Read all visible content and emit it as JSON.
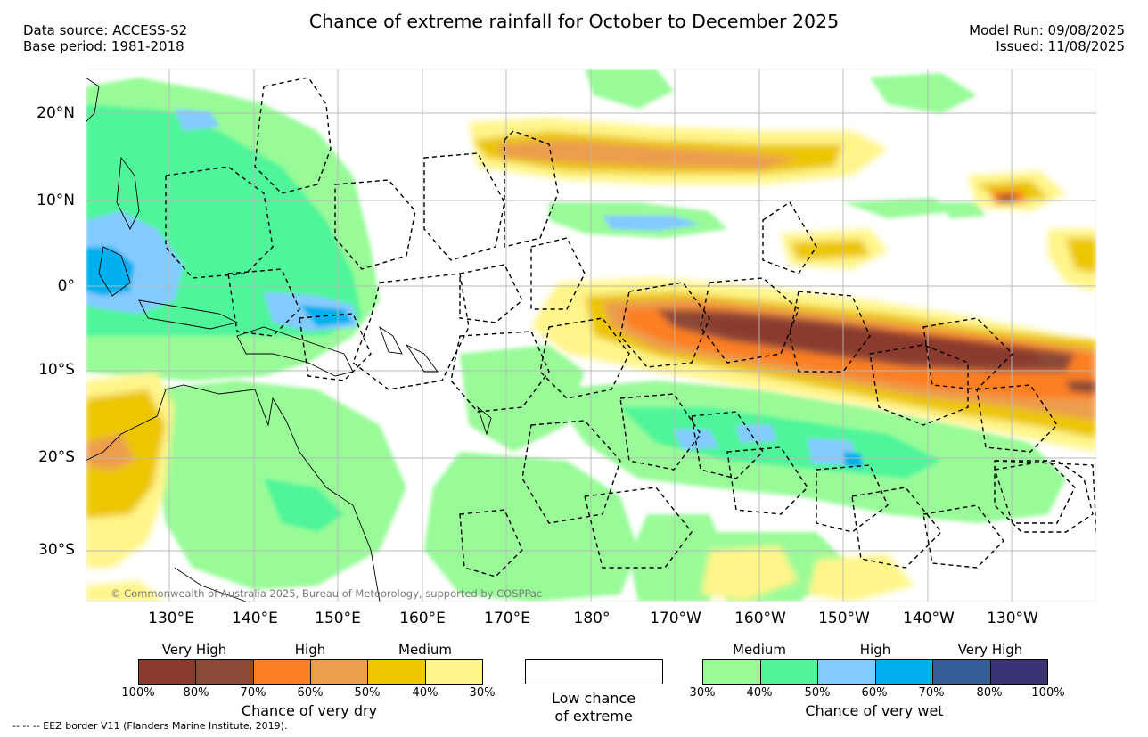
{
  "title": "Chance of extreme rainfall for October to December 2025",
  "meta": {
    "data_source": "Data source: ACCESS-S2",
    "base_period": "Base period: 1981-2018",
    "model_run": "Model Run: 09/08/2025",
    "issued": "Issued: 11/08/2025"
  },
  "axes": {
    "lat_labels": [
      "20°N",
      "10°N",
      "0°",
      "10°S",
      "20°S",
      "30°S"
    ],
    "lon_labels": [
      "130°E",
      "140°E",
      "150°E",
      "160°E",
      "170°E",
      "180°",
      "170°W",
      "160°W",
      "150°W",
      "140°W",
      "130°W"
    ]
  },
  "copyright": "© Commonwealth of Australia 2025, Bureau of Meteorology, supported by COSPPac",
  "legend": {
    "dry": {
      "title": "Chance of very dry",
      "levels": [
        "Very High",
        "High",
        "Medium"
      ],
      "ticks": [
        "100%",
        "80%",
        "70%",
        "60%",
        "50%",
        "40%",
        "30%"
      ],
      "colors": [
        "#8b3a2e",
        "#8b4a38",
        "#fc7f24",
        "#ec9d4d",
        "#ecc600",
        "#fff58a"
      ]
    },
    "low": {
      "label_line1": "Low chance",
      "label_line2": "of extreme"
    },
    "wet": {
      "title": "Chance of very wet",
      "levels": [
        "Medium",
        "High",
        "Very High"
      ],
      "ticks": [
        "30%",
        "40%",
        "50%",
        "60%",
        "70%",
        "80%",
        "100%"
      ],
      "colors": [
        "#98fb98",
        "#50f59a",
        "#82caff",
        "#00b0ee",
        "#335c99",
        "#3a3475"
      ]
    }
  },
  "footnote": "--  --  -- EEZ border V11 (Flanders Marine Institute, 2019)."
}
